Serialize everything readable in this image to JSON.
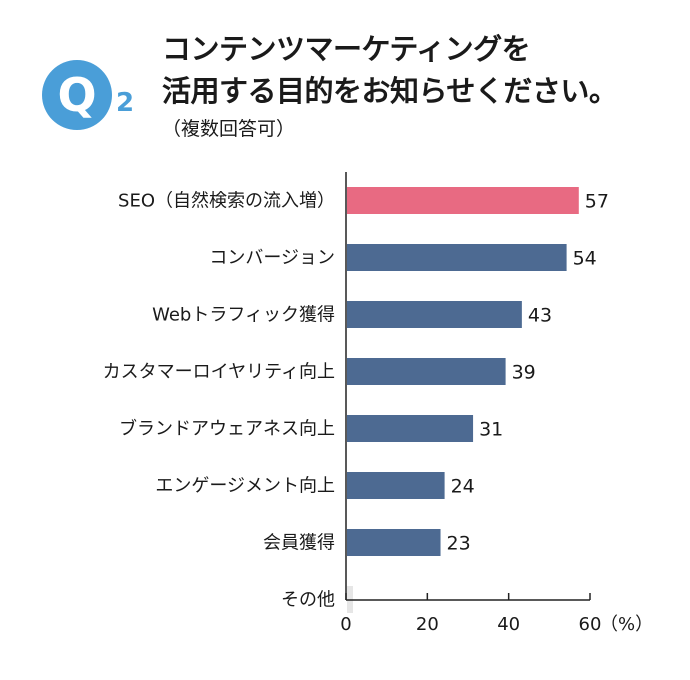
{
  "header": {
    "badge_letter": "Q",
    "question_number": "2",
    "title_line1": "コンテンツマーケティングを",
    "title_line2": "活用する目的をお知らせください。",
    "subtitle": "（複数回答可）"
  },
  "chart_data": {
    "type": "bar",
    "orientation": "horizontal",
    "categories": [
      "SEO（自然検索の流入増）",
      "コンバージョン",
      "Webトラフィック獲得",
      "カスタマーロイヤリティ向上",
      "ブランドアウェアネス向上",
      "エンゲージメント向上",
      "会員獲得",
      "その他"
    ],
    "values": [
      57,
      54,
      43,
      39,
      31,
      24,
      23,
      0
    ],
    "value_labels": [
      "57",
      "54",
      "43",
      "39",
      "31",
      "24",
      "23",
      ""
    ],
    "highlight_index": 0,
    "colors": {
      "highlight": "#e86a82",
      "default": "#4d6a92",
      "zero": "#e6e6e6",
      "axis": "#222222"
    },
    "xlim": [
      0,
      60
    ],
    "ticks": [
      "0",
      "20",
      "40",
      "60"
    ],
    "tick_values": [
      0,
      20,
      40,
      60
    ],
    "unit": "（%）"
  }
}
